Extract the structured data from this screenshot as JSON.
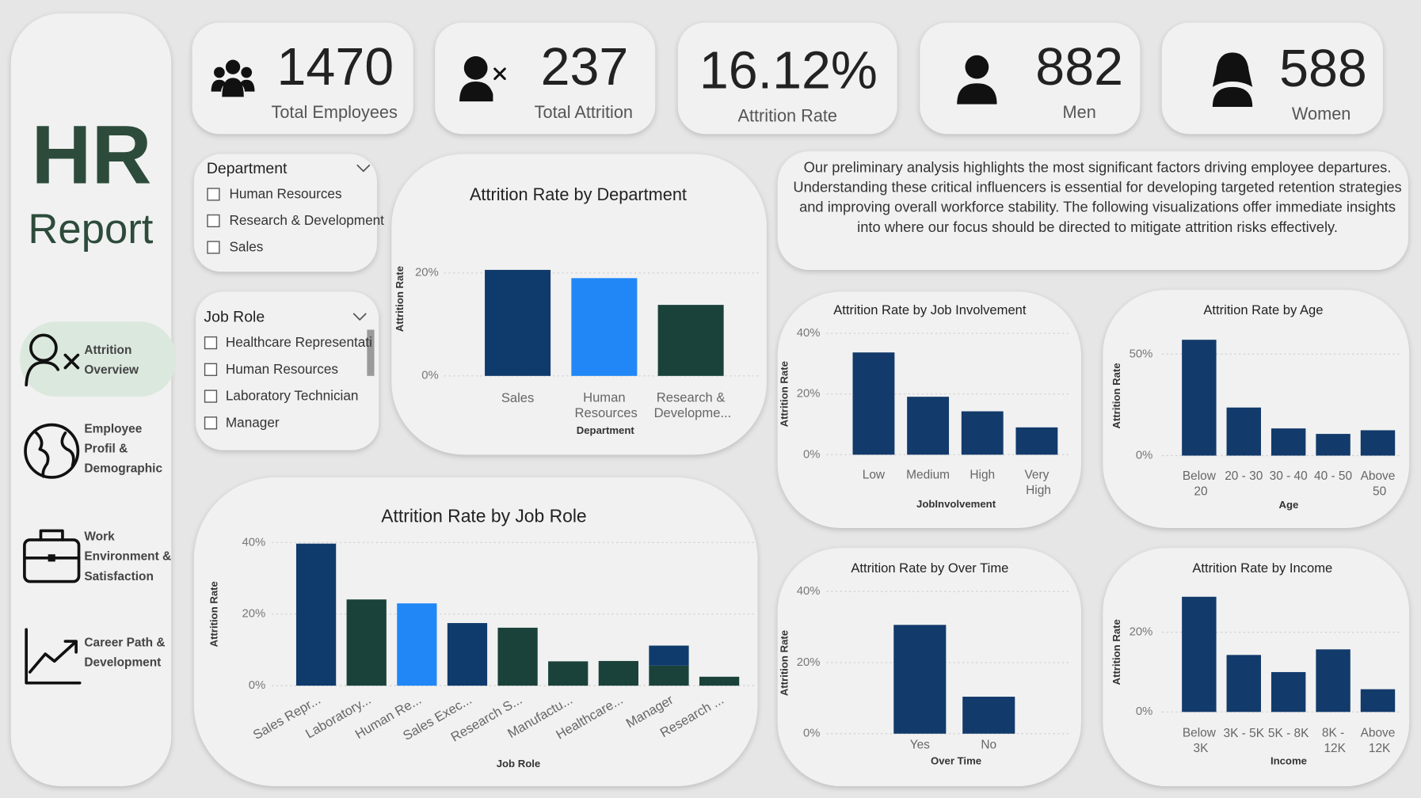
{
  "sidebar": {
    "title": "HR",
    "subtitle": "Report",
    "nav": [
      [
        "Attrition",
        "Overview"
      ],
      [
        "Employee",
        "Profil &",
        "Demographic"
      ],
      [
        "Work",
        "Environment &",
        "Satisfaction"
      ],
      [
        "Career Path &",
        "Development"
      ]
    ]
  },
  "kpis": [
    {
      "value": "1470",
      "label": "Total Employees"
    },
    {
      "value": "237",
      "label": "Total Attrition"
    },
    {
      "value": "16.12%",
      "label": "Attrition Rate"
    },
    {
      "value": "882",
      "label": "Men"
    },
    {
      "value": "588",
      "label": "Women"
    }
  ],
  "slicers": [
    {
      "title": "Department",
      "options": [
        "Human Resources",
        "Research & Development",
        "Sales"
      ]
    },
    {
      "title": "Job Role",
      "options": [
        "Healthcare Representati",
        "Human Resources",
        "Laboratory Technician",
        "Manager"
      ]
    }
  ],
  "summary": "Our preliminary analysis highlights the most significant factors driving employee departures. Understanding these critical influencers is essential for developing targeted retention strategies and improving overall workforce stability. The following visualizations offer immediate insights into where our focus should be directed to mitigate attrition risks effectively.",
  "chart_data": [
    {
      "type": "bar",
      "title": "Attrition Rate by Department",
      "x_label": "Department",
      "y_label": "Attrition Rate",
      "categories": [
        "Sales",
        "Human Resources",
        "Research & Developme..."
      ],
      "values": [
        20.6,
        19.0,
        13.8
      ],
      "colors": [
        "#0f3a6c",
        "#2187f7",
        "#1a423a"
      ],
      "ylim": [
        0,
        22
      ],
      "yticks": [
        {
          "value": 0,
          "label": "0%"
        },
        {
          "value": 20,
          "label": "20%"
        }
      ],
      "grid": true
    },
    {
      "type": "bar",
      "title": "Attrition Rate by Job Role",
      "x_label": "Job Role",
      "y_label": "Attrition Rate",
      "categories": [
        "Sales Repr...",
        "Laboratory...",
        "Human Re...",
        "Sales Exec...",
        "Research S...",
        "Manufactu...",
        "Healthcare...",
        "Manager",
        "Research ..."
      ],
      "stacked": true,
      "series": [
        {
          "color": "#1a423a",
          "values": [
            null,
            24.1,
            null,
            null,
            16.2,
            6.8,
            6.9,
            5.6,
            2.5
          ]
        },
        {
          "color": "#2187f7",
          "values": [
            null,
            null,
            23.0,
            null,
            null,
            null,
            null,
            null,
            null
          ]
        },
        {
          "color": "#0f3a6c",
          "values": [
            39.7,
            null,
            null,
            17.5,
            null,
            null,
            null,
            5.6,
            null
          ]
        }
      ],
      "ylim": [
        0,
        40
      ],
      "yticks": [
        {
          "value": 0,
          "label": "0%"
        },
        {
          "value": 20,
          "label": "20%"
        },
        {
          "value": 40,
          "label": "40%"
        }
      ],
      "grid": true
    },
    {
      "type": "bar",
      "title": "Attrition Rate by Job Involvement",
      "x_label": "JobInvolvement",
      "y_label": "Attrition Rate",
      "categories": [
        "Low",
        "Medium",
        "High",
        "Very High"
      ],
      "values": [
        33.7,
        19.1,
        14.3,
        9.0
      ],
      "color": "#123a6b",
      "ylim": [
        0,
        40
      ],
      "yticks": [
        {
          "value": 0,
          "label": "0%"
        },
        {
          "value": 20,
          "label": "20%"
        },
        {
          "value": 40,
          "label": "40%"
        }
      ],
      "grid": true
    },
    {
      "type": "bar",
      "title": "Attrition Rate by Age",
      "x_label": "Age",
      "y_label": "Attrition Rate",
      "categories": [
        "Below 20",
        "20 - 30",
        "30 - 40",
        "40 - 50",
        "Above 50"
      ],
      "values": [
        57.1,
        23.7,
        13.4,
        10.7,
        12.5
      ],
      "color": "#123a6b",
      "ylim": [
        0,
        60
      ],
      "yticks": [
        {
          "value": 0,
          "label": "0%"
        },
        {
          "value": 50,
          "label": "50%"
        }
      ],
      "grid": true
    },
    {
      "type": "bar",
      "title": "Attrition Rate by Over Time",
      "x_label": "Over Time",
      "y_label": "Attrition Rate",
      "categories": [
        "Yes",
        "No"
      ],
      "values": [
        30.6,
        10.4
      ],
      "color": "#123a6b",
      "ylim": [
        0,
        40
      ],
      "yticks": [
        {
          "value": 0,
          "label": "0%"
        },
        {
          "value": 20,
          "label": "20%"
        },
        {
          "value": 40,
          "label": "40%"
        }
      ],
      "grid": true
    },
    {
      "type": "bar",
      "title": "Attrition Rate by Income",
      "x_label": "Income",
      "y_label": "Attrition Rate",
      "categories": [
        "Below 3K",
        "3K - 5K",
        "5K - 8K",
        "8K - 12K",
        "Above 12K"
      ],
      "values": [
        28.9,
        14.3,
        10.0,
        15.7,
        5.7
      ],
      "color": "#123a6b",
      "ylim": [
        0,
        30
      ],
      "yticks": [
        {
          "value": 0,
          "label": "0%"
        },
        {
          "value": 20,
          "label": "20%"
        }
      ],
      "grid": true
    }
  ]
}
